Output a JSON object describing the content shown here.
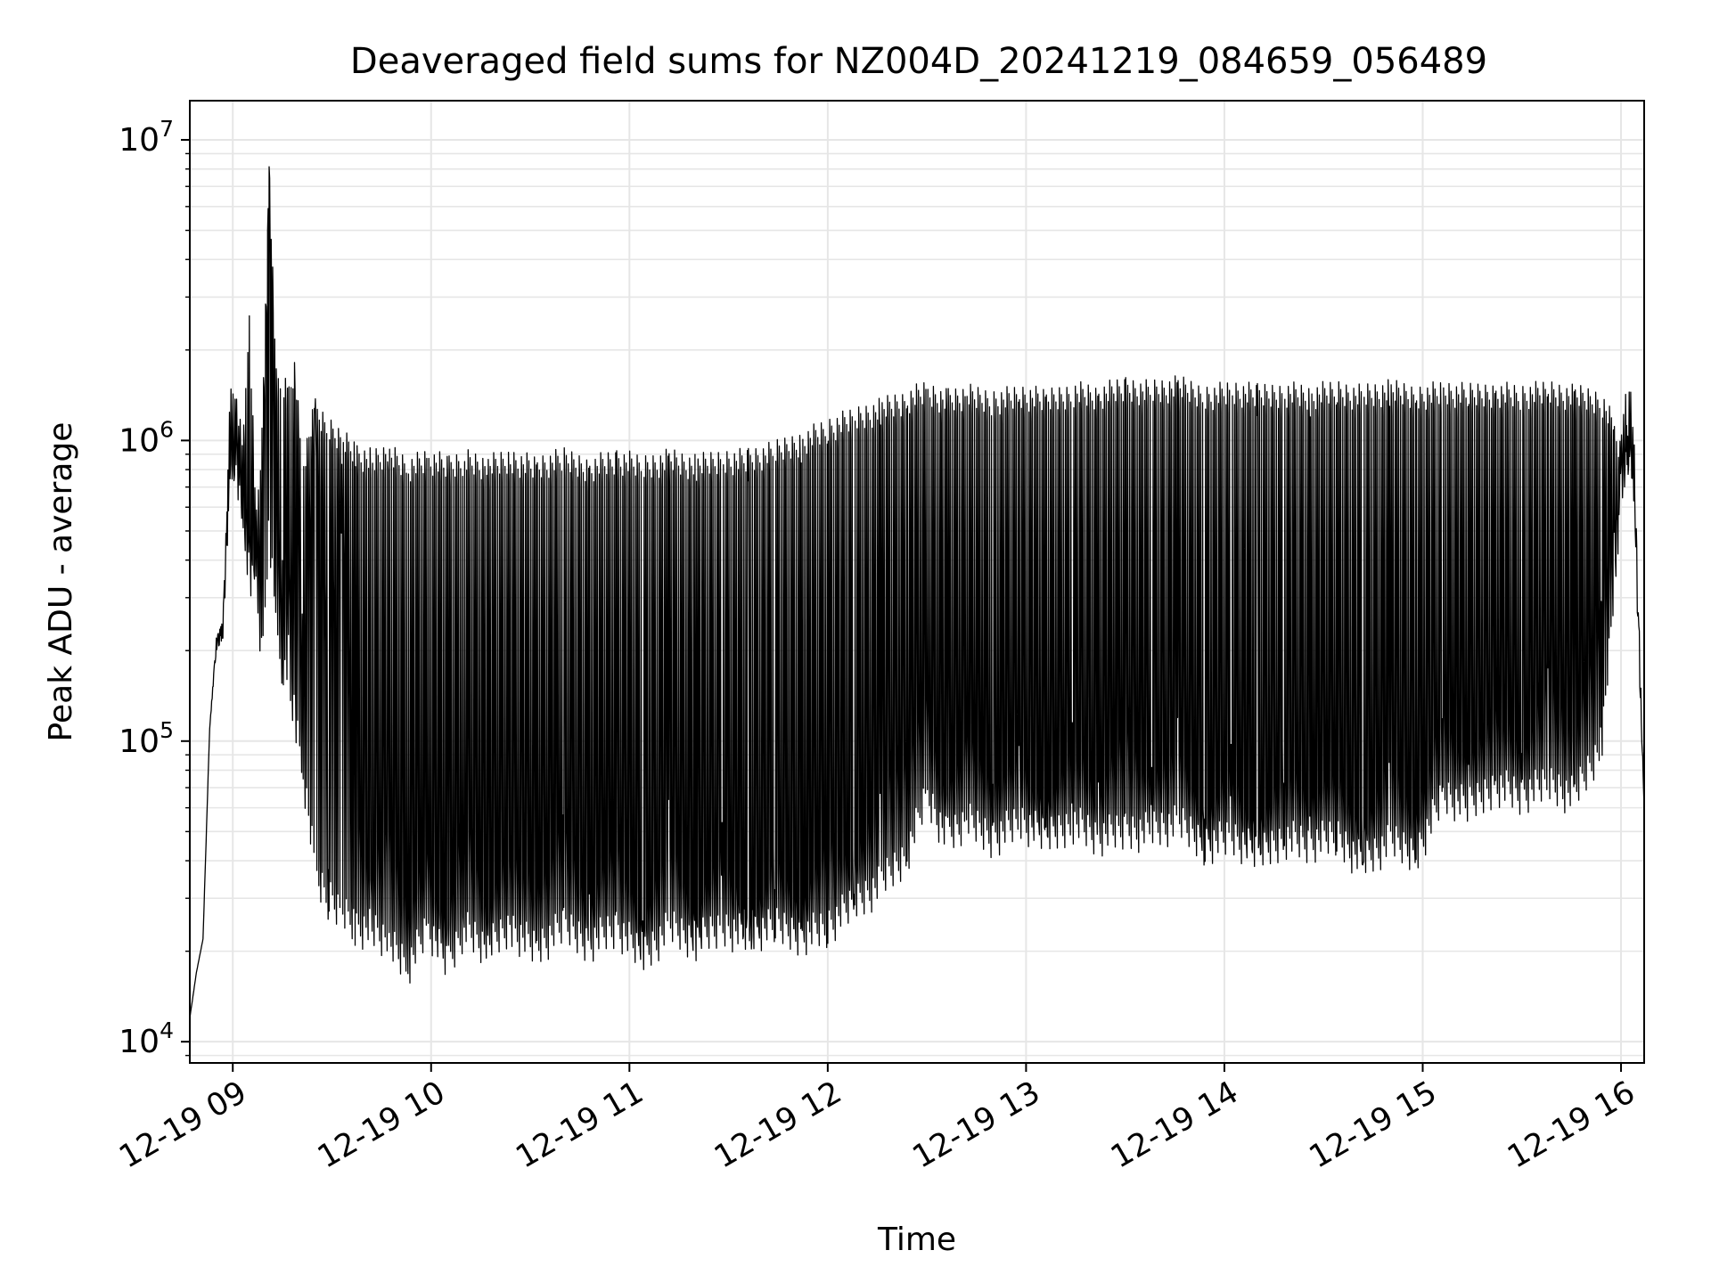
{
  "chart_data": {
    "type": "line",
    "title": "Deaveraged field sums for NZ004D_20241219_084659_056489",
    "xlabel": "Time",
    "ylabel": "Peak ADU - average",
    "yscale": "log",
    "ylim": [
      8500,
      13500000
    ],
    "xlim": [
      "2024-12-19 08:47",
      "2024-12-19 16:07"
    ],
    "x_ticks": [
      {
        "t": "2024-12-19 09:00",
        "label": "12-19 09"
      },
      {
        "t": "2024-12-19 10:00",
        "label": "12-19 10"
      },
      {
        "t": "2024-12-19 11:00",
        "label": "12-19 11"
      },
      {
        "t": "2024-12-19 12:00",
        "label": "12-19 12"
      },
      {
        "t": "2024-12-19 13:00",
        "label": "12-19 13"
      },
      {
        "t": "2024-12-19 14:00",
        "label": "12-19 14"
      },
      {
        "t": "2024-12-19 15:00",
        "label": "12-19 15"
      },
      {
        "t": "2024-12-19 16:00",
        "label": "12-19 16"
      }
    ],
    "y_ticks": [
      {
        "value": 10000,
        "base": "10",
        "exp": "4"
      },
      {
        "value": 100000,
        "base": "10",
        "exp": "5"
      },
      {
        "value": 1000000,
        "base": "10",
        "exp": "6"
      },
      {
        "value": 10000000,
        "base": "10",
        "exp": "7"
      }
    ],
    "grid": true,
    "legend": "none",
    "line_color": "#000000",
    "series": [
      {
        "x": [
          "2024-12-19 08:47",
          "2024-12-19 08:49",
          "2024-12-19 08:51",
          "2024-12-19 08:53",
          "2024-12-19 08:55",
          "2024-12-19 08:57",
          "2024-12-19 08:59",
          "2024-12-19 09:01",
          "2024-12-19 09:03",
          "2024-12-19 09:05",
          "2024-12-19 09:07",
          "2024-12-19 09:09",
          "2024-12-19 09:11",
          "2024-12-19 09:13",
          "2024-12-19 09:15",
          "2024-12-19 09:17",
          "2024-12-19 09:19",
          "2024-12-19 09:21",
          "2024-12-19 09:25",
          "2024-12-19 09:29",
          "2024-12-19 09:33",
          "2024-12-19 09:37",
          "2024-12-19 09:42",
          "2024-12-19 09:47",
          "2024-12-19 09:53",
          "2024-12-19 09:59",
          "2024-12-19 10:05",
          "2024-12-19 10:10",
          "2024-12-19 10:17",
          "2024-12-19 10:24",
          "2024-12-19 10:32",
          "2024-12-19 10:40",
          "2024-12-19 10:48",
          "2024-12-19 10:56",
          "2024-12-19 11:04",
          "2024-12-19 11:12",
          "2024-12-19 11:20",
          "2024-12-19 11:28",
          "2024-12-19 11:36",
          "2024-12-19 11:44",
          "2024-12-19 11:52",
          "2024-12-19 12:00",
          "2024-12-19 12:08",
          "2024-12-19 12:16",
          "2024-12-19 12:24",
          "2024-12-19 12:30",
          "2024-12-19 12:36",
          "2024-12-19 12:42",
          "2024-12-19 12:50",
          "2024-12-19 12:58",
          "2024-12-19 13:06",
          "2024-12-19 13:14",
          "2024-12-19 13:22",
          "2024-12-19 13:30",
          "2024-12-19 13:38",
          "2024-12-19 13:46",
          "2024-12-19 13:54",
          "2024-12-19 14:02",
          "2024-12-19 14:10",
          "2024-12-19 14:18",
          "2024-12-19 14:26",
          "2024-12-19 14:34",
          "2024-12-19 14:42",
          "2024-12-19 14:50",
          "2024-12-19 14:58",
          "2024-12-19 15:06",
          "2024-12-19 15:14",
          "2024-12-19 15:22",
          "2024-12-19 15:30",
          "2024-12-19 15:38",
          "2024-12-19 15:46",
          "2024-12-19 15:54",
          "2024-12-19 15:58",
          "2024-12-19 16:00",
          "2024-12-19 16:02",
          "2024-12-19 16:04",
          "2024-12-19 16:06",
          "2024-12-19 16:07"
        ],
        "y": [
          12000,
          17000,
          22000,
          110000,
          220000,
          250000,
          800000,
          1100000,
          700000,
          500000,
          450000,
          600000,
          9000000,
          500000,
          400000,
          300000,
          1000000,
          250000,
          1200000,
          200000,
          700000,
          70000,
          40000,
          60000,
          30000,
          45000,
          25000,
          70000,
          30000,
          50000,
          35000,
          60000,
          30000,
          55000,
          25000,
          60000,
          28000,
          50000,
          25000,
          45000,
          30000,
          55000,
          40000,
          80000,
          100000,
          150000,
          70000,
          120000,
          80000,
          100000,
          60000,
          120000,
          70000,
          130000,
          80000,
          110000,
          60000,
          90000,
          50000,
          100000,
          70000,
          90000,
          50000,
          100000,
          60000,
          140000,
          90000,
          150000,
          100000,
          180000,
          120000,
          300000,
          500000,
          700000,
          1000000,
          800000,
          150000,
          60000
        ],
        "y_high": [
          12000,
          17000,
          22000,
          110000,
          220000,
          250000,
          1500000,
          1600000,
          1000000,
          3000000,
          600000,
          1200000,
          9000000,
          1800000,
          1700000,
          1600000,
          1900000,
          900000,
          1400000,
          1200000,
          1100000,
          1000000,
          950000,
          1000000,
          900000,
          950000,
          900000,
          950000,
          900000,
          950000,
          900000,
          950000,
          900000,
          950000,
          900000,
          950000,
          900000,
          950000,
          950000,
          1000000,
          1100000,
          1200000,
          1300000,
          1400000,
          1500000,
          1600000,
          1500000,
          1550000,
          1500000,
          1550000,
          1500000,
          1600000,
          1550000,
          1650000,
          1600000,
          1650000,
          1550000,
          1600000,
          1550000,
          1600000,
          1550000,
          1600000,
          1550000,
          1600000,
          1550000,
          1600000,
          1550000,
          1600000,
          1550000,
          1600000,
          1550000,
          1500000,
          1200000,
          1000000,
          2000000,
          1000000,
          150000,
          60000
        ],
        "y_low": [
          12000,
          17000,
          22000,
          110000,
          200000,
          220000,
          600000,
          700000,
          400000,
          300000,
          280000,
          150000,
          400000,
          200000,
          150000,
          120000,
          100000,
          70000,
          30000,
          25000,
          22000,
          20000,
          20000,
          18000,
          15000,
          20000,
          15000,
          20000,
          17000,
          20000,
          17000,
          20000,
          18000,
          20000,
          16000,
          20000,
          18000,
          20000,
          19000,
          20000,
          19000,
          20000,
          24000,
          28000,
          35000,
          55000,
          40000,
          45000,
          40000,
          45000,
          40000,
          45000,
          40000,
          42000,
          42000,
          44000,
          38000,
          40000,
          35000,
          40000,
          38000,
          40000,
          33000,
          38000,
          35000,
          55000,
          50000,
          60000,
          55000,
          60000,
          55000,
          80000,
          250000,
          600000,
          800000,
          500000,
          120000,
          60000
        ]
      }
    ]
  }
}
